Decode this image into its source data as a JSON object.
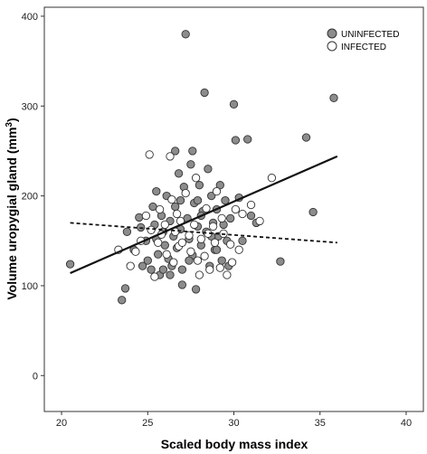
{
  "chart_data": {
    "type": "scatter",
    "title": "",
    "xlabel": "Scaled body mass index",
    "ylabel_main": "Volume uropygial gland (mm",
    "ylabel_sup": "3",
    "ylabel_close": ")",
    "xlim": [
      19,
      41
    ],
    "ylim": [
      -40,
      410
    ],
    "xticks": [
      {
        "value": 20,
        "label": "20"
      },
      {
        "value": 25,
        "label": "25"
      },
      {
        "value": 30,
        "label": "30"
      },
      {
        "value": 35,
        "label": "35"
      },
      {
        "value": 40,
        "label": "40"
      }
    ],
    "yticks": [
      {
        "value": 0,
        "label": "0"
      },
      {
        "value": 100,
        "label": "100"
      },
      {
        "value": 200,
        "label": "200"
      },
      {
        "value": 300,
        "label": "300"
      },
      {
        "value": 400,
        "label": "400"
      }
    ],
    "grid": false,
    "legend_position": "top-right",
    "colors": {
      "uninfected_fill": "#8c8c8c",
      "infected_fill": "#ffffff",
      "marker_stroke": "#333333",
      "line": "#111111"
    },
    "series": [
      {
        "name": "UNINFECTED",
        "marker": "filled",
        "points": [
          [
            20.5,
            124
          ],
          [
            23.5,
            84
          ],
          [
            23.7,
            97
          ],
          [
            23.8,
            160
          ],
          [
            24.2,
            140
          ],
          [
            24.5,
            176
          ],
          [
            24.7,
            122
          ],
          [
            24.9,
            150
          ],
          [
            25.0,
            128
          ],
          [
            25.2,
            118
          ],
          [
            25.3,
            188
          ],
          [
            25.4,
            168
          ],
          [
            25.5,
            152
          ],
          [
            25.6,
            135
          ],
          [
            25.7,
            112
          ],
          [
            25.8,
            178
          ],
          [
            25.9,
            160
          ],
          [
            26.0,
            145
          ],
          [
            26.1,
            200
          ],
          [
            26.2,
            130
          ],
          [
            26.3,
            172
          ],
          [
            26.4,
            122
          ],
          [
            26.5,
            155
          ],
          [
            26.6,
            188
          ],
          [
            26.7,
            142
          ],
          [
            26.8,
            225
          ],
          [
            26.9,
            163
          ],
          [
            27.0,
            118
          ],
          [
            27.1,
            210
          ],
          [
            27.2,
            380
          ],
          [
            27.3,
            175
          ],
          [
            27.4,
            152
          ],
          [
            27.5,
            235
          ],
          [
            27.6,
            134
          ],
          [
            27.7,
            192
          ],
          [
            27.8,
            96
          ],
          [
            27.9,
            166
          ],
          [
            28.0,
            212
          ],
          [
            28.1,
            145
          ],
          [
            28.2,
            183
          ],
          [
            28.3,
            315
          ],
          [
            28.4,
            160
          ],
          [
            28.5,
            230
          ],
          [
            28.6,
            122
          ],
          [
            28.7,
            200
          ],
          [
            28.8,
            170
          ],
          [
            28.9,
            140
          ],
          [
            29.0,
            185
          ],
          [
            29.1,
            155
          ],
          [
            29.2,
            212
          ],
          [
            29.3,
            128
          ],
          [
            29.4,
            168
          ],
          [
            29.5,
            195
          ],
          [
            29.6,
            150
          ],
          [
            29.8,
            175
          ],
          [
            30.0,
            302
          ],
          [
            30.1,
            262
          ],
          [
            30.3,
            198
          ],
          [
            30.5,
            150
          ],
          [
            30.8,
            263
          ],
          [
            31.0,
            178
          ],
          [
            31.3,
            170
          ],
          [
            32.7,
            127
          ],
          [
            34.2,
            265
          ],
          [
            34.6,
            182
          ],
          [
            35.8,
            309
          ],
          [
            25.5,
            205
          ],
          [
            26.6,
            250
          ],
          [
            27.0,
            101
          ],
          [
            27.4,
            128
          ],
          [
            27.9,
            195
          ],
          [
            28.1,
            178
          ],
          [
            26.3,
            112
          ],
          [
            29.7,
            122
          ],
          [
            24.6,
            165
          ],
          [
            28.7,
            155
          ],
          [
            26.9,
            195
          ],
          [
            27.6,
            250
          ],
          [
            29.0,
            140
          ],
          [
            25.9,
            118
          ]
        ]
      },
      {
        "name": "INFECTED",
        "marker": "open",
        "points": [
          [
            23.3,
            140
          ],
          [
            24.3,
            138
          ],
          [
            24.9,
            178
          ],
          [
            25.1,
            246
          ],
          [
            25.2,
            162
          ],
          [
            25.4,
            110
          ],
          [
            25.6,
            148
          ],
          [
            25.8,
            157
          ],
          [
            26.0,
            168
          ],
          [
            26.1,
            135
          ],
          [
            26.3,
            244
          ],
          [
            26.4,
            196
          ],
          [
            26.5,
            126
          ],
          [
            26.6,
            160
          ],
          [
            26.8,
            144
          ],
          [
            26.9,
            172
          ],
          [
            27.0,
            148
          ],
          [
            27.2,
            203
          ],
          [
            27.4,
            156
          ],
          [
            27.5,
            138
          ],
          [
            27.7,
            168
          ],
          [
            27.8,
            220
          ],
          [
            28.0,
            112
          ],
          [
            28.1,
            152
          ],
          [
            28.3,
            133
          ],
          [
            28.4,
            186
          ],
          [
            28.6,
            118
          ],
          [
            28.8,
            166
          ],
          [
            28.9,
            148
          ],
          [
            29.0,
            205
          ],
          [
            29.2,
            120
          ],
          [
            29.4,
            158
          ],
          [
            29.6,
            112
          ],
          [
            29.8,
            146
          ],
          [
            29.9,
            126
          ],
          [
            30.1,
            185
          ],
          [
            30.5,
            180
          ],
          [
            31.5,
            172
          ],
          [
            32.2,
            220
          ],
          [
            31.0,
            190
          ],
          [
            24.0,
            122
          ],
          [
            24.6,
            150
          ],
          [
            26.7,
            180
          ],
          [
            27.9,
            128
          ],
          [
            28.5,
            158
          ],
          [
            29.3,
            175
          ],
          [
            30.3,
            140
          ],
          [
            25.7,
            185
          ]
        ]
      }
    ],
    "trend_lines": [
      {
        "name": "UNINFECTED",
        "style": "solid",
        "x": [
          20.5,
          36.0
        ],
        "y": [
          114,
          244
        ]
      },
      {
        "name": "INFECTED",
        "style": "dashed",
        "x": [
          20.5,
          36.0
        ],
        "y": [
          170,
          148
        ]
      }
    ]
  }
}
